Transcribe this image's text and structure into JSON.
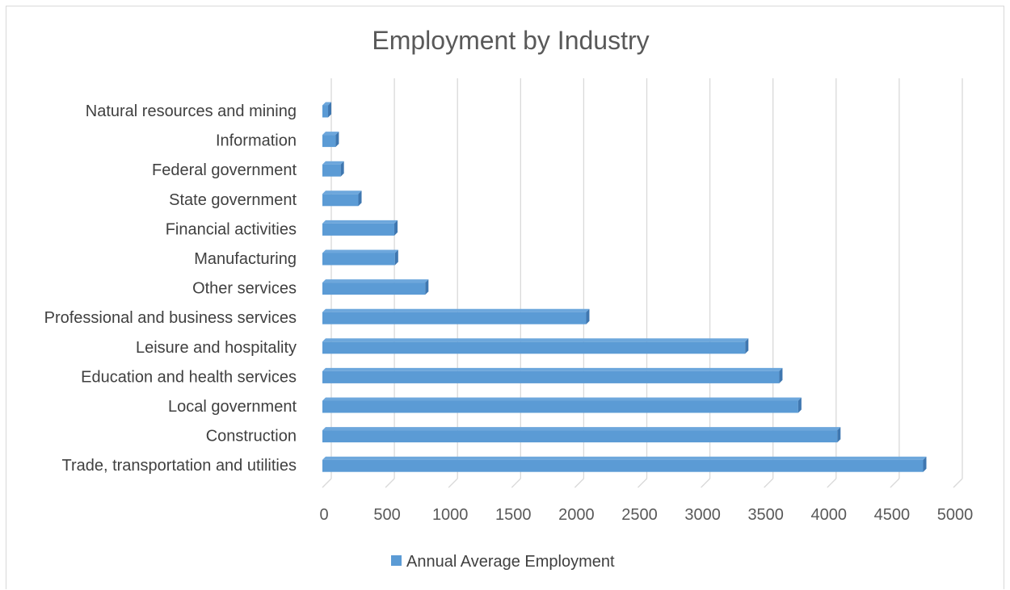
{
  "chart_data": {
    "type": "bar",
    "orientation": "horizontal",
    "title": "Employment by Industry",
    "xlabel": "",
    "ylabel": "",
    "categories": [
      "Natural resources and mining",
      "Information",
      "Federal government",
      "State government",
      "Financial activities",
      "Manufacturing",
      "Other services",
      "Professional and business services",
      "Leisure and hospitality",
      "Education and health services",
      "Local government",
      "Construction",
      "Trade, transportation and utilities"
    ],
    "series": [
      {
        "name": "Annual Average Employment",
        "values": [
          45,
          105,
          145,
          285,
          570,
          575,
          815,
          2090,
          3350,
          3620,
          3770,
          4080,
          4760
        ],
        "color": "#5b9bd5"
      }
    ],
    "xlim": [
      0,
      5000
    ],
    "ticks": [
      "0",
      "500",
      "1000",
      "1500",
      "2000",
      "2500",
      "3000",
      "3500",
      "4000",
      "4500",
      "5000"
    ],
    "grid": true,
    "style_3d": true,
    "legend_position": "bottom"
  }
}
